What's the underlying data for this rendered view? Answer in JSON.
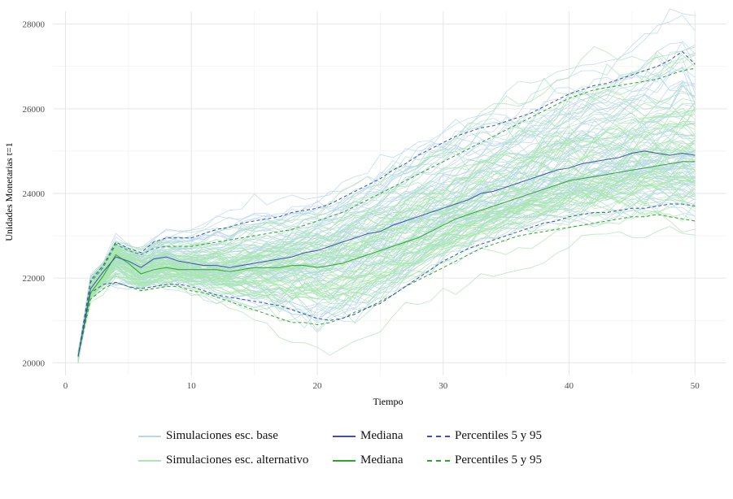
{
  "chart_data": {
    "type": "line",
    "xlabel": "Tiempo",
    "ylabel": "Unidades Monetarias t=1",
    "xlim": [
      -1,
      52.5
    ],
    "ylim": [
      19700,
      28300
    ],
    "x_ticks": [
      0,
      10,
      20,
      30,
      40,
      50
    ],
    "y_ticks": [
      20000,
      22000,
      24000,
      26000,
      28000
    ],
    "x_tick_labels": [
      "0",
      "10",
      "20",
      "30",
      "40",
      "50"
    ],
    "y_tick_labels": [
      "20000",
      "22000",
      "24000",
      "26000",
      "28000"
    ],
    "grid": true,
    "legend_position": "bottom",
    "x": [
      1,
      2,
      3,
      4,
      5,
      6,
      7,
      8,
      9,
      10,
      11,
      12,
      13,
      14,
      15,
      16,
      17,
      18,
      19,
      20,
      21,
      22,
      23,
      24,
      25,
      26,
      27,
      28,
      29,
      30,
      31,
      32,
      33,
      34,
      35,
      36,
      37,
      38,
      39,
      40,
      41,
      42,
      43,
      44,
      45,
      46,
      47,
      48,
      49,
      50
    ],
    "series": [
      {
        "name": "Mediana",
        "group": "base",
        "color": "#3f4fb5",
        "style": "solid",
        "values": [
          20150,
          21750,
          22150,
          22500,
          22400,
          22250,
          22450,
          22500,
          22400,
          22350,
          22300,
          22300,
          22250,
          22300,
          22350,
          22400,
          22450,
          22500,
          22600,
          22650,
          22750,
          22850,
          22950,
          23050,
          23100,
          23250,
          23350,
          23450,
          23550,
          23650,
          23750,
          23850,
          24000,
          24050,
          24150,
          24250,
          24350,
          24450,
          24550,
          24600,
          24700,
          24750,
          24800,
          24850,
          24950,
          25000,
          24950,
          24900,
          24950,
          24900
        ]
      },
      {
        "name": "Mediana",
        "group": "alternativo",
        "color": "#2ea42e",
        "style": "solid",
        "values": [
          20150,
          21650,
          22050,
          22550,
          22350,
          22100,
          22200,
          22250,
          22200,
          22200,
          22200,
          22200,
          22150,
          22200,
          22250,
          22250,
          22250,
          22300,
          22300,
          22250,
          22300,
          22350,
          22450,
          22550,
          22650,
          22750,
          22850,
          22950,
          23100,
          23250,
          23400,
          23500,
          23600,
          23700,
          23800,
          23900,
          24000,
          24100,
          24200,
          24300,
          24350,
          24400,
          24450,
          24500,
          24550,
          24600,
          24650,
          24700,
          24750,
          24750
        ]
      },
      {
        "name": "Percentiles 5 y 95",
        "group": "base",
        "color": "#3f4fb5",
        "style": "dashed",
        "upper": [
          20150,
          21950,
          22300,
          22850,
          22700,
          22600,
          22850,
          22950,
          22950,
          22950,
          23050,
          23150,
          23200,
          23300,
          23350,
          23400,
          23450,
          23550,
          23600,
          23650,
          23750,
          23900,
          24050,
          24200,
          24350,
          24550,
          24700,
          24900,
          25050,
          25200,
          25350,
          25450,
          25550,
          25600,
          25700,
          25800,
          25900,
          26050,
          26200,
          26350,
          26450,
          26550,
          26600,
          26700,
          26800,
          26900,
          27000,
          27150,
          27350,
          27050
        ],
        "lower": [
          20150,
          21650,
          21850,
          21900,
          21800,
          21750,
          21800,
          21850,
          21850,
          21800,
          21700,
          21600,
          21550,
          21500,
          21450,
          21400,
          21350,
          21250,
          21150,
          21050,
          21000,
          21050,
          21150,
          21300,
          21400,
          21600,
          21800,
          22000,
          22200,
          22400,
          22550,
          22700,
          22800,
          22900,
          23000,
          23100,
          23200,
          23300,
          23350,
          23450,
          23500,
          23550,
          23550,
          23600,
          23650,
          23650,
          23700,
          23750,
          23750,
          23700
        ]
      },
      {
        "name": "Percentiles 5 y 95",
        "group": "alternativo",
        "color": "#2ea42e",
        "style": "dashed",
        "upper": [
          20150,
          21900,
          22250,
          22800,
          22650,
          22550,
          22700,
          22750,
          22750,
          22750,
          22800,
          22850,
          22900,
          22950,
          23000,
          23050,
          23100,
          23150,
          23250,
          23350,
          23450,
          23550,
          23700,
          23850,
          24000,
          24150,
          24300,
          24450,
          24600,
          24750,
          24900,
          25050,
          25200,
          25350,
          25500,
          25650,
          25800,
          25950,
          26100,
          26250,
          26350,
          26450,
          26500,
          26550,
          26600,
          26650,
          26700,
          26800,
          26900,
          26950
        ],
        "lower": [
          20150,
          21500,
          21750,
          21900,
          21800,
          21700,
          21750,
          21800,
          21800,
          21700,
          21650,
          21550,
          21450,
          21350,
          21250,
          21150,
          21050,
          20950,
          20950,
          20900,
          20950,
          21050,
          21200,
          21300,
          21450,
          21600,
          21800,
          21950,
          22100,
          22250,
          22400,
          22550,
          22700,
          22800,
          22900,
          23000,
          23050,
          23100,
          23150,
          23200,
          23250,
          23300,
          23350,
          23400,
          23450,
          23450,
          23500,
          23450,
          23400,
          23350
        ]
      }
    ],
    "simulations": {
      "base": {
        "name": "Simulaciones esc. base",
        "color": "#b9d6ef",
        "count": 70
      },
      "alternativo": {
        "name": "Simulaciones esc. alternativo",
        "color": "#a9e6b0",
        "count": 70
      }
    }
  },
  "legend": {
    "row1": {
      "sim": "Simulaciones esc. base",
      "median": "Mediana",
      "pct": "Percentiles 5 y 95"
    },
    "row2": {
      "sim": "Simulaciones esc. alternativo",
      "median": "Mediana",
      "pct": "Percentiles 5 y 95"
    }
  },
  "colors": {
    "sim_base": "#b9d6ef",
    "sim_alt": "#a9e6b0",
    "median_base": "#3f4fb5",
    "median_alt": "#2ea42e",
    "grid": "#e6e6e6"
  }
}
